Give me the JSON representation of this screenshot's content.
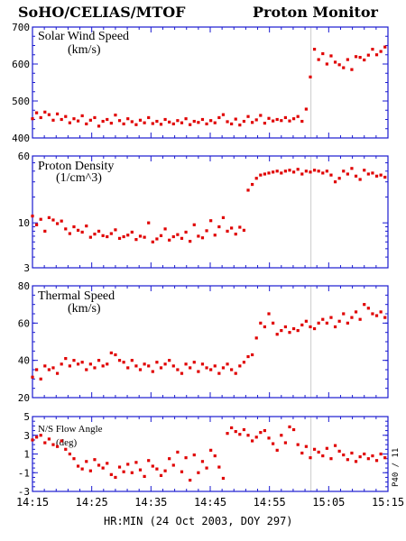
{
  "header": {
    "left_title": "SoHO/CELIAS/MTOF",
    "right_title": "Proton Monitor"
  },
  "x_axis_label": "HR:MIN (24 Oct 2003, DOY 297)",
  "side_label": "P40 / 11",
  "colors": {
    "axes": "#1a1ad0",
    "points": "#e00000",
    "marker_line": "#cccccc"
  },
  "chart_data": [
    {
      "type": "scatter",
      "title": "Solar Wind Speed",
      "ylabel": "(km/s)",
      "ylim": [
        400,
        700
      ],
      "yscale": "linear",
      "yticks": [
        400,
        500,
        600,
        700
      ],
      "xticks": [
        "14:15",
        "14:25",
        "14:35",
        "14:45",
        "14:55",
        "15:05",
        "15:15"
      ],
      "xlim": [
        0,
        60
      ],
      "vline": 47,
      "x": [
        0.0,
        0.7,
        1.4,
        2.1,
        2.8,
        3.5,
        4.2,
        4.9,
        5.6,
        6.3,
        7.0,
        7.7,
        8.4,
        9.1,
        9.8,
        10.5,
        11.2,
        11.9,
        12.6,
        13.3,
        14.0,
        14.7,
        15.4,
        16.1,
        16.8,
        17.5,
        18.2,
        18.9,
        19.6,
        20.3,
        21.0,
        21.7,
        22.4,
        23.1,
        23.8,
        24.5,
        25.2,
        25.9,
        26.6,
        27.3,
        28.0,
        28.7,
        29.4,
        30.1,
        30.8,
        31.5,
        32.2,
        32.9,
        33.6,
        34.3,
        35.0,
        35.7,
        36.4,
        37.1,
        37.8,
        38.5,
        39.2,
        39.9,
        40.6,
        41.3,
        42.0,
        42.7,
        43.4,
        44.1,
        44.8,
        45.5,
        46.2,
        46.9,
        47.6,
        48.3,
        49.0,
        49.7,
        50.4,
        51.1,
        51.8,
        52.5,
        53.2,
        53.9,
        54.6,
        55.3,
        56.0,
        56.7,
        57.4,
        58.1,
        58.8,
        59.5
      ],
      "y": [
        452,
        468,
        455,
        470,
        463,
        448,
        465,
        450,
        458,
        441,
        452,
        446,
        460,
        438,
        448,
        455,
        432,
        445,
        450,
        440,
        462,
        447,
        438,
        452,
        444,
        436,
        448,
        441,
        455,
        439,
        445,
        437,
        450,
        443,
        438,
        447,
        441,
        452,
        436,
        445,
        442,
        450,
        438,
        447,
        441,
        455,
        463,
        444,
        438,
        451,
        435,
        445,
        458,
        442,
        449,
        461,
        440,
        453,
        446,
        450,
        447,
        455,
        446,
        452,
        458,
        445,
        478,
        565,
        640,
        612,
        628,
        600,
        622,
        605,
        598,
        590,
        612,
        585,
        620,
        618,
        611,
        624,
        640,
        625,
        634,
        646
      ]
    },
    {
      "type": "scatter",
      "title": "Proton Density",
      "ylabel": "(1/cm^3)",
      "ylim": [
        3,
        60
      ],
      "yscale": "log",
      "yticks": [
        3,
        10,
        60
      ],
      "xticks": [
        "14:15",
        "14:25",
        "14:35",
        "14:45",
        "14:55",
        "15:05",
        "15:15"
      ],
      "xlim": [
        0,
        60
      ],
      "vline": 47,
      "x": [
        0.0,
        0.7,
        1.4,
        2.1,
        2.8,
        3.5,
        4.2,
        4.9,
        5.6,
        6.3,
        7.0,
        7.7,
        8.4,
        9.1,
        9.8,
        10.5,
        11.2,
        11.9,
        12.6,
        13.3,
        14.0,
        14.7,
        15.4,
        16.1,
        16.8,
        17.5,
        18.2,
        18.9,
        19.6,
        20.3,
        21.0,
        21.7,
        22.4,
        23.1,
        23.8,
        24.5,
        25.2,
        25.9,
        26.6,
        27.3,
        28.0,
        28.7,
        29.4,
        30.1,
        30.8,
        31.5,
        32.2,
        32.9,
        33.6,
        34.3,
        35.0,
        35.7,
        36.4,
        37.1,
        37.8,
        38.5,
        39.2,
        39.9,
        40.6,
        41.3,
        42.0,
        42.7,
        43.4,
        44.1,
        44.8,
        45.5,
        46.2,
        46.9,
        47.6,
        48.3,
        49.0,
        49.7,
        50.4,
        51.1,
        51.8,
        52.5,
        53.2,
        53.9,
        54.6,
        55.3,
        56.0,
        56.7,
        57.4,
        58.1,
        58.8,
        59.5
      ],
      "y": [
        12.0,
        9.5,
        11.0,
        8.0,
        11.5,
        10.8,
        9.8,
        10.5,
        8.5,
        7.5,
        9.0,
        8.2,
        7.8,
        9.2,
        6.8,
        7.4,
        8.0,
        7.1,
        6.9,
        7.5,
        8.3,
        6.6,
        6.9,
        7.2,
        7.8,
        6.4,
        7.0,
        6.8,
        10.0,
        6.0,
        6.5,
        7.1,
        8.5,
        6.3,
        6.9,
        7.3,
        6.6,
        7.8,
        6.1,
        9.5,
        7.0,
        6.7,
        8.1,
        10.6,
        7.2,
        9.0,
        11.5,
        8.0,
        8.7,
        7.4,
        8.9,
        8.2,
        24,
        28,
        33,
        36,
        37,
        38,
        39,
        40,
        38,
        40,
        41,
        39,
        42,
        37,
        40,
        39,
        41,
        40,
        38,
        40,
        36,
        30,
        33,
        40,
        37,
        43,
        35,
        32,
        41,
        37,
        38,
        35,
        36,
        34
      ]
    },
    {
      "type": "scatter",
      "title": "Thermal Speed",
      "ylabel": "(km/s)",
      "ylim": [
        20,
        80
      ],
      "yscale": "linear",
      "yticks": [
        20,
        40,
        60,
        80
      ],
      "xticks": [
        "14:15",
        "14:25",
        "14:35",
        "14:45",
        "14:55",
        "15:05",
        "15:15"
      ],
      "xlim": [
        0,
        60
      ],
      "vline": 47,
      "x": [
        0.0,
        0.7,
        1.4,
        2.1,
        2.8,
        3.5,
        4.2,
        4.9,
        5.6,
        6.3,
        7.0,
        7.7,
        8.4,
        9.1,
        9.8,
        10.5,
        11.2,
        11.9,
        12.6,
        13.3,
        14.0,
        14.7,
        15.4,
        16.1,
        16.8,
        17.5,
        18.2,
        18.9,
        19.6,
        20.3,
        21.0,
        21.7,
        22.4,
        23.1,
        23.8,
        24.5,
        25.2,
        25.9,
        26.6,
        27.3,
        28.0,
        28.7,
        29.4,
        30.1,
        30.8,
        31.5,
        32.2,
        32.9,
        33.6,
        34.3,
        35.0,
        35.7,
        36.4,
        37.1,
        37.8,
        38.5,
        39.2,
        39.9,
        40.6,
        41.3,
        42.0,
        42.7,
        43.4,
        44.1,
        44.8,
        45.5,
        46.2,
        46.9,
        47.6,
        48.3,
        49.0,
        49.7,
        50.4,
        51.1,
        51.8,
        52.5,
        53.2,
        53.9,
        54.6,
        55.3,
        56.0,
        56.7,
        57.4,
        58.1,
        58.8,
        59.5
      ],
      "y": [
        31,
        35,
        30,
        37,
        35,
        36,
        33,
        38,
        41,
        37,
        40,
        38,
        39,
        35,
        38,
        36,
        40,
        37,
        38,
        44,
        43,
        40,
        39,
        36,
        40,
        37,
        35,
        38,
        37,
        34,
        39,
        36,
        38,
        40,
        37,
        35,
        33,
        38,
        36,
        39,
        34,
        38,
        36,
        35,
        37,
        33,
        36,
        38,
        35,
        33,
        37,
        39,
        42,
        43,
        52,
        60,
        58,
        65,
        60,
        54,
        56,
        58,
        55,
        57,
        56,
        59,
        61,
        58,
        57,
        60,
        62,
        60,
        63,
        58,
        61,
        65,
        60,
        63,
        66,
        62,
        70,
        68,
        65,
        64,
        66,
        63
      ]
    },
    {
      "type": "scatter",
      "title": "N/S Flow Angle",
      "ylabel": "(deg)",
      "ylim": [
        -3,
        5
      ],
      "yscale": "linear",
      "yticks": [
        -3,
        -1,
        1,
        3,
        5
      ],
      "xticks": [
        "14:15",
        "14:25",
        "14:35",
        "14:45",
        "14:55",
        "15:05",
        "15:15"
      ],
      "xlim": [
        0,
        60
      ],
      "vline": 47,
      "x": [
        0.0,
        0.7,
        1.4,
        2.1,
        2.8,
        3.5,
        4.2,
        4.9,
        5.6,
        6.3,
        7.0,
        7.7,
        8.4,
        9.1,
        9.8,
        10.5,
        11.2,
        11.9,
        12.6,
        13.3,
        14.0,
        14.7,
        15.4,
        16.1,
        16.8,
        17.5,
        18.2,
        18.9,
        19.6,
        20.3,
        21.0,
        21.7,
        22.4,
        23.1,
        23.8,
        24.5,
        25.2,
        25.9,
        26.6,
        27.3,
        28.0,
        28.7,
        29.4,
        30.1,
        30.8,
        31.5,
        32.2,
        32.9,
        33.6,
        34.3,
        35.0,
        35.7,
        36.4,
        37.1,
        37.8,
        38.5,
        39.2,
        39.9,
        40.6,
        41.3,
        42.0,
        42.7,
        43.4,
        44.1,
        44.8,
        45.5,
        46.2,
        46.9,
        47.6,
        48.3,
        49.0,
        49.7,
        50.4,
        51.1,
        51.8,
        52.5,
        53.2,
        53.9,
        54.6,
        55.3,
        56.0,
        56.7,
        57.4,
        58.1,
        58.8,
        59.5
      ],
      "y": [
        2.5,
        2.8,
        3.0,
        2.2,
        2.6,
        2.0,
        1.8,
        2.4,
        1.5,
        1.0,
        0.5,
        -0.3,
        -0.6,
        0.2,
        -0.8,
        0.4,
        -0.2,
        -0.5,
        0.0,
        -1.2,
        -1.5,
        -0.4,
        -0.9,
        -0.1,
        -1.0,
        0.1,
        -0.7,
        -1.4,
        0.3,
        -0.3,
        -0.6,
        -1.3,
        -0.8,
        0.5,
        -0.2,
        1.2,
        -0.9,
        0.6,
        -1.8,
        0.9,
        -1.0,
        0.2,
        -0.5,
        1.4,
        0.8,
        -0.4,
        -1.6,
        3.2,
        3.8,
        3.4,
        3.1,
        3.6,
        3.0,
        2.4,
        2.8,
        3.3,
        3.5,
        2.7,
        2.1,
        1.4,
        3.0,
        2.2,
        3.9,
        3.6,
        2.0,
        1.1,
        1.8,
        0.6,
        1.5,
        1.2,
        0.8,
        1.6,
        0.5,
        1.9,
        1.3,
        0.9,
        0.4,
        1.1,
        0.2,
        0.7,
        1.0,
        0.5,
        0.8,
        0.3,
        1.0,
        0.6
      ]
    }
  ]
}
